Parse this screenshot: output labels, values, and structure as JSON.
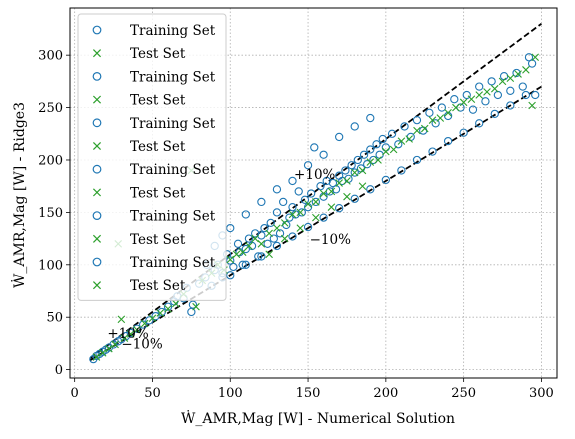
{
  "chart_data": {
    "type": "scatter",
    "title": "",
    "xlabel": "Ẇ_AMR,Mag [W] - Numerical Solution",
    "ylabel": "Ẇ_AMR,Mag [W] - Ridge3",
    "xlim": [
      -3,
      310
    ],
    "ylim": [
      -8,
      345
    ],
    "xticks": [
      0,
      50,
      100,
      150,
      200,
      250,
      300
    ],
    "yticks": [
      0,
      50,
      100,
      150,
      200,
      250,
      300
    ],
    "grid": true,
    "legend_position": "top-left",
    "legend": [
      {
        "label": "Training Set",
        "marker": "circle",
        "color": "#1f77b4"
      },
      {
        "label": "Test Set",
        "marker": "x",
        "color": "#2ca02c"
      },
      {
        "label": "Training Set",
        "marker": "circle",
        "color": "#1f77b4"
      },
      {
        "label": "Test Set",
        "marker": "x",
        "color": "#2ca02c"
      },
      {
        "label": "Training Set",
        "marker": "circle",
        "color": "#1f77b4"
      },
      {
        "label": "Test Set",
        "marker": "x",
        "color": "#2ca02c"
      },
      {
        "label": "Training Set",
        "marker": "circle",
        "color": "#1f77b4"
      },
      {
        "label": "Test Set",
        "marker": "x",
        "color": "#2ca02c"
      },
      {
        "label": "Training Set",
        "marker": "circle",
        "color": "#1f77b4"
      },
      {
        "label": "Test Set",
        "marker": "x",
        "color": "#2ca02c"
      },
      {
        "label": "Training Set",
        "marker": "circle",
        "color": "#1f77b4"
      },
      {
        "label": "Test Set",
        "marker": "x",
        "color": "#2ca02c"
      }
    ],
    "reference_lines": [
      {
        "label": "+10%",
        "factor": 1.1,
        "x_range": [
          10,
          300
        ],
        "style": "dashed",
        "color": "#000000"
      },
      {
        "label": "−10%",
        "factor": 0.9,
        "x_range": [
          10,
          300
        ],
        "style": "dashed",
        "color": "#000000"
      }
    ],
    "annotations": [
      {
        "text": "+10%",
        "x": 141,
        "y": 182
      },
      {
        "text": "−10%",
        "x": 151,
        "y": 120
      },
      {
        "text": "+10%",
        "x": 21,
        "y": 30
      },
      {
        "text": "−10%",
        "x": 30,
        "y": 20
      }
    ],
    "series": [
      {
        "name": "Training Set",
        "marker": "circle",
        "color": "#1f77b4",
        "points": [
          [
            12,
            10
          ],
          [
            14,
            13
          ],
          [
            16,
            15
          ],
          [
            18,
            17
          ],
          [
            20,
            19
          ],
          [
            22,
            21
          ],
          [
            25,
            24
          ],
          [
            28,
            27
          ],
          [
            30,
            29
          ],
          [
            33,
            32
          ],
          [
            36,
            35
          ],
          [
            40,
            39
          ],
          [
            44,
            43
          ],
          [
            48,
            47
          ],
          [
            52,
            51
          ],
          [
            56,
            55
          ],
          [
            60,
            60
          ],
          [
            64,
            65
          ],
          [
            66,
            70
          ],
          [
            70,
            68
          ],
          [
            72,
            78
          ],
          [
            75,
            55
          ],
          [
            76,
            62
          ],
          [
            80,
            82
          ],
          [
            84,
            88
          ],
          [
            88,
            80
          ],
          [
            90,
            95
          ],
          [
            92,
            100
          ],
          [
            95,
            92
          ],
          [
            98,
            110
          ],
          [
            100,
            104
          ],
          [
            102,
            98
          ],
          [
            105,
            120
          ],
          [
            106,
            112
          ],
          [
            108,
            100
          ],
          [
            110,
            115
          ],
          [
            112,
            125
          ],
          [
            114,
            118
          ],
          [
            116,
            130
          ],
          [
            118,
            108
          ],
          [
            120,
            128
          ],
          [
            122,
            135
          ],
          [
            124,
            120
          ],
          [
            126,
            140
          ],
          [
            128,
            125
          ],
          [
            130,
            150
          ],
          [
            132,
            130
          ],
          [
            134,
            160
          ],
          [
            136,
            138
          ],
          [
            138,
            145
          ],
          [
            140,
            155
          ],
          [
            142,
            148
          ],
          [
            144,
            170
          ],
          [
            146,
            150
          ],
          [
            148,
            162
          ],
          [
            150,
            155
          ],
          [
            152,
            168
          ],
          [
            154,
            212
          ],
          [
            155,
            160
          ],
          [
            158,
            175
          ],
          [
            160,
            165
          ],
          [
            162,
            180
          ],
          [
            164,
            170
          ],
          [
            166,
            178
          ],
          [
            168,
            172
          ],
          [
            170,
            185
          ],
          [
            172,
            180
          ],
          [
            174,
            190
          ],
          [
            176,
            182
          ],
          [
            178,
            195
          ],
          [
            180,
            188
          ],
          [
            182,
            200
          ],
          [
            184,
            192
          ],
          [
            186,
            205
          ],
          [
            188,
            196
          ],
          [
            190,
            210
          ],
          [
            192,
            200
          ],
          [
            194,
            215
          ],
          [
            196,
            205
          ],
          [
            198,
            220
          ],
          [
            200,
            212
          ],
          [
            204,
            225
          ],
          [
            208,
            215
          ],
          [
            212,
            232
          ],
          [
            216,
            222
          ],
          [
            220,
            238
          ],
          [
            224,
            228
          ],
          [
            228,
            245
          ],
          [
            232,
            235
          ],
          [
            236,
            250
          ],
          [
            240,
            242
          ],
          [
            244,
            258
          ],
          [
            248,
            250
          ],
          [
            252,
            262
          ],
          [
            256,
            248
          ],
          [
            260,
            270
          ],
          [
            264,
            256
          ],
          [
            268,
            275
          ],
          [
            272,
            262
          ],
          [
            276,
            280
          ],
          [
            280,
            266
          ],
          [
            284,
            283
          ],
          [
            288,
            270
          ],
          [
            292,
            298
          ],
          [
            294,
            292
          ],
          [
            296,
            262
          ],
          [
            90,
            118
          ],
          [
            95,
            128
          ],
          [
            100,
            135
          ],
          [
            110,
            148
          ],
          [
            120,
            160
          ],
          [
            130,
            172
          ],
          [
            140,
            180
          ],
          [
            150,
            195
          ],
          [
            160,
            205
          ],
          [
            170,
            222
          ],
          [
            180,
            232
          ],
          [
            190,
            240
          ],
          [
            100,
            90
          ],
          [
            110,
            100
          ],
          [
            120,
            108
          ],
          [
            130,
            118
          ],
          [
            140,
            127
          ],
          [
            150,
            136
          ],
          [
            160,
            145
          ],
          [
            170,
            154
          ],
          [
            180,
            163
          ],
          [
            190,
            172
          ],
          [
            200,
            181
          ],
          [
            210,
            190
          ],
          [
            220,
            200
          ],
          [
            230,
            208
          ],
          [
            240,
            218
          ],
          [
            250,
            226
          ],
          [
            260,
            235
          ],
          [
            270,
            244
          ],
          [
            280,
            252
          ],
          [
            290,
            262
          ],
          [
            85,
            100
          ],
          [
            95,
            88
          ]
        ]
      },
      {
        "name": "Test Set",
        "marker": "x",
        "color": "#2ca02c",
        "points": [
          [
            14,
            12
          ],
          [
            18,
            16
          ],
          [
            22,
            20
          ],
          [
            26,
            24
          ],
          [
            30,
            48
          ],
          [
            32,
            30
          ],
          [
            36,
            34
          ],
          [
            40,
            38
          ],
          [
            45,
            44
          ],
          [
            50,
            49
          ],
          [
            55,
            54
          ],
          [
            60,
            58
          ],
          [
            65,
            63
          ],
          [
            70,
            72
          ],
          [
            75,
            190
          ],
          [
            78,
            60
          ],
          [
            82,
            85
          ],
          [
            88,
            92
          ],
          [
            92,
            100
          ],
          [
            96,
            95
          ],
          [
            100,
            105
          ],
          [
            104,
            110
          ],
          [
            108,
            112
          ],
          [
            112,
            118
          ],
          [
            116,
            125
          ],
          [
            120,
            120
          ],
          [
            125,
            130
          ],
          [
            130,
            135
          ],
          [
            135,
            140
          ],
          [
            140,
            148
          ],
          [
            145,
            150
          ],
          [
            150,
            158
          ],
          [
            155,
            160
          ],
          [
            160,
            168
          ],
          [
            165,
            170
          ],
          [
            170,
            178
          ],
          [
            175,
            180
          ],
          [
            180,
            188
          ],
          [
            185,
            190
          ],
          [
            190,
            198
          ],
          [
            195,
            200
          ],
          [
            200,
            208
          ],
          [
            205,
            210
          ],
          [
            210,
            218
          ],
          [
            215,
            220
          ],
          [
            220,
            228
          ],
          [
            225,
            230
          ],
          [
            230,
            238
          ],
          [
            235,
            240
          ],
          [
            240,
            245
          ],
          [
            245,
            250
          ],
          [
            250,
            255
          ],
          [
            255,
            258
          ],
          [
            260,
            262
          ],
          [
            265,
            265
          ],
          [
            270,
            268
          ],
          [
            275,
            275
          ],
          [
            280,
            278
          ],
          [
            285,
            282
          ],
          [
            290,
            286
          ],
          [
            294,
            252
          ],
          [
            296,
            298
          ],
          [
            28,
            120
          ],
          [
            125,
            110
          ],
          [
            135,
            125
          ],
          [
            145,
            135
          ],
          [
            155,
            145
          ],
          [
            165,
            155
          ],
          [
            175,
            165
          ],
          [
            185,
            175
          ]
        ]
      }
    ]
  }
}
